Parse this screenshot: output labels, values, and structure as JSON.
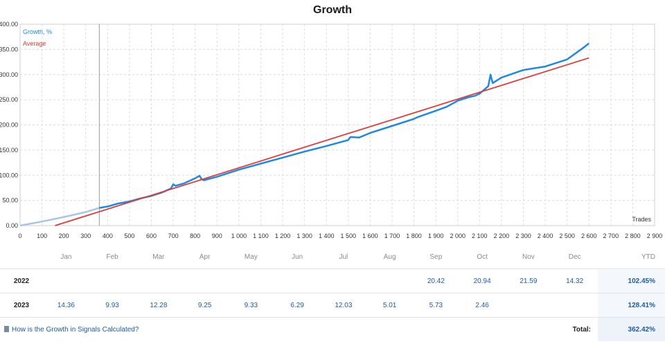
{
  "chart_data": {
    "type": "line",
    "title": "Growth",
    "xlabel": "Trades",
    "ylabel": "",
    "xlim": [
      0,
      2900
    ],
    "ylim": [
      0,
      400
    ],
    "x_ticks": [
      0,
      100,
      200,
      300,
      400,
      500,
      600,
      700,
      800,
      900,
      1000,
      1100,
      1200,
      1300,
      1400,
      1500,
      1600,
      1700,
      1800,
      1900,
      2000,
      2100,
      2200,
      2300,
      2400,
      2500,
      2600,
      2700,
      2800,
      2900
    ],
    "x_tick_labels": [
      "0",
      "100",
      "200",
      "300",
      "400",
      "500",
      "600",
      "700",
      "800",
      "900",
      "1 000",
      "1 100",
      "1 200",
      "1 300",
      "1 400",
      "1 500",
      "1 600",
      "1 700",
      "1 800",
      "1 900",
      "2 000",
      "2 100",
      "2 200",
      "2 300",
      "2 400",
      "2 500",
      "2 600",
      "2 700",
      "2 800",
      "2 900"
    ],
    "y_ticks": [
      0,
      50,
      100,
      150,
      200,
      250,
      300,
      350,
      400
    ],
    "y_tick_labels": [
      "0.00",
      "50.00",
      "100.00",
      "150.00",
      "200.00",
      "250.00",
      "300.00",
      "350.00",
      "400.00"
    ],
    "grid": true,
    "legend_position": "top-left",
    "vertical_marker_x": 362,
    "series": [
      {
        "name": "Growth, %",
        "color": "#1e88e5",
        "history_color": "#a9c4e4",
        "history_end_x": 362,
        "x": [
          0,
          100,
          200,
          300,
          362,
          400,
          450,
          500,
          550,
          600,
          650,
          690,
          700,
          710,
          750,
          800,
          820,
          830,
          840,
          900,
          1000,
          1100,
          1200,
          1300,
          1400,
          1450,
          1500,
          1510,
          1550,
          1600,
          1700,
          1800,
          1820,
          1900,
          1950,
          2000,
          2050,
          2080,
          2100,
          2140,
          2150,
          2160,
          2200,
          2300,
          2400,
          2500,
          2580,
          2600
        ],
        "y": [
          0,
          8,
          17,
          27,
          35,
          38,
          44,
          48,
          54,
          59,
          66,
          74,
          82,
          79,
          84,
          94,
          99,
          92,
          90,
          97,
          111,
          123,
          135,
          147,
          158,
          164,
          170,
          176,
          175,
          184,
          198,
          212,
          216,
          228,
          236,
          248,
          255,
          258,
          262,
          277,
          300,
          283,
          294,
          309,
          316,
          330,
          355,
          362
        ]
      },
      {
        "name": "Average",
        "color": "#e53935",
        "x": [
          160,
          2600
        ],
        "y": [
          0,
          333
        ]
      }
    ]
  },
  "table": {
    "months": [
      "Jan",
      "Feb",
      "Mar",
      "Apr",
      "May",
      "Jun",
      "Jul",
      "Aug",
      "Sep",
      "Oct",
      "Nov",
      "Dec"
    ],
    "ytd_header": "YTD",
    "rows": [
      {
        "year": "2022",
        "values": [
          "",
          "",
          "",
          "",
          "",
          "",
          "",
          "",
          "20.42",
          "20.94",
          "21.59",
          "14.32"
        ],
        "ytd": "102.45%"
      },
      {
        "year": "2023",
        "values": [
          "14.36",
          "9.93",
          "12.28",
          "9.25",
          "9.33",
          "6.29",
          "12.03",
          "5.01",
          "5.73",
          "2.46",
          "",
          ""
        ],
        "ytd": "128.41%"
      }
    ],
    "calc_link": "How is the Growth in Signals Calculated?",
    "total_label": "Total:",
    "total_value": "362.42%"
  }
}
